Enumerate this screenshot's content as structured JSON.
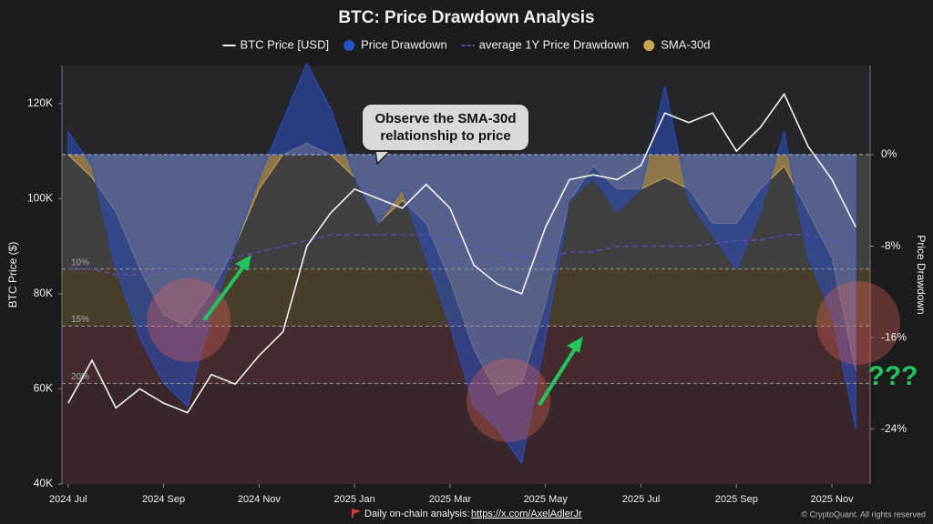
{
  "chart_data": {
    "type": "line",
    "title": "BTC: Price Drawdown Analysis",
    "y_label": "BTC Price ($)",
    "y2_label": "Price Drawdown",
    "x": [
      0,
      0.5,
      1,
      1.5,
      2,
      2.5,
      3,
      3.5,
      4,
      4.5,
      5,
      5.5,
      6,
      6.5,
      7,
      7.5,
      8,
      8.5,
      9,
      9.5,
      10,
      10.5,
      11,
      11.5,
      12,
      12.5,
      13,
      13.5,
      14,
      14.5,
      15,
      15.5,
      16,
      16.5
    ],
    "xlim": [
      -0.13,
      16.8
    ],
    "xticks": [
      {
        "value": 0,
        "label": "2024 Jul"
      },
      {
        "value": 2,
        "label": "2024 Sep"
      },
      {
        "value": 4,
        "label": "2024 Nov"
      },
      {
        "value": 6,
        "label": "2025 Jan"
      },
      {
        "value": 8,
        "label": "2025 Mar"
      },
      {
        "value": 10,
        "label": "2025 May"
      },
      {
        "value": 12,
        "label": "2025 Jul"
      },
      {
        "value": 14,
        "label": "2025 Sep"
      },
      {
        "value": 16,
        "label": "2025 Nov"
      }
    ],
    "ylim": [
      40000,
      128000
    ],
    "yticks": [
      {
        "value": 40000,
        "label": "40K"
      },
      {
        "value": 60000,
        "label": "60K"
      },
      {
        "value": 80000,
        "label": "80K"
      },
      {
        "value": 100000,
        "label": "100K"
      },
      {
        "value": 120000,
        "label": "120K"
      }
    ],
    "y2lim": [
      -28.8,
      7.8
    ],
    "y2ticks": [
      {
        "value": 0,
        "label": "0%"
      },
      {
        "value": -8,
        "label": "-8%"
      },
      {
        "value": -16,
        "label": "-16%"
      },
      {
        "value": -24,
        "label": "-24%"
      }
    ],
    "band_lines": [
      {
        "value": -10,
        "label": "10%"
      },
      {
        "value": -15,
        "label": "15%"
      },
      {
        "value": -20,
        "label": "20%"
      }
    ],
    "band_colors": [
      "#b8b4a8",
      "#8a6a2e",
      "#7a3430",
      "#5a2a2a"
    ],
    "series": [
      {
        "name": "SMA-30d",
        "color": "#c9a652",
        "kind": "area",
        "axis": "y2",
        "values": [
          0,
          -2,
          -5,
          -10,
          -14,
          -15,
          -12,
          -8,
          -3,
          0,
          1,
          0,
          -2,
          -6,
          -4,
          -6,
          -11,
          -17,
          -21,
          -20,
          -13,
          -4,
          -1,
          -3,
          -3,
          -2,
          -3,
          -6,
          -6,
          -3,
          -1,
          -5,
          -9,
          -19
        ]
      },
      {
        "name": "Price Drawdown",
        "color": "#2a4fc4",
        "kind": "area",
        "axis": "y2",
        "values": [
          2,
          -1,
          -10,
          -16,
          -20,
          -22,
          -14,
          -8,
          -2,
          3,
          8,
          4,
          -2,
          -6,
          -3,
          -9,
          -15,
          -22,
          -24,
          -27,
          -16,
          -4,
          -2,
          -5,
          -3,
          6,
          -4,
          -7,
          -10,
          -5,
          2,
          -9,
          -14,
          -24
        ]
      },
      {
        "name": "average 1Y Price Drawdown",
        "color": "#5b4fb0",
        "kind": "dashed",
        "axis": "y2",
        "values": [
          -10,
          -10,
          -10.5,
          -10.5,
          -10,
          -10,
          -9.5,
          -9,
          -8.5,
          -8,
          -7.5,
          -7,
          -7,
          -7,
          -7,
          -7,
          -7.5,
          -8,
          -8.5,
          -9,
          -9,
          -8.5,
          -8.5,
          -8,
          -8,
          -8,
          -8,
          -7.8,
          -7.5,
          -7.5,
          -7,
          -7,
          -7.5,
          -8
        ]
      },
      {
        "name": "BTC Price [USD]",
        "color": "#f2f2f2",
        "kind": "line",
        "axis": "y",
        "values": [
          57000,
          66000,
          56000,
          60000,
          57000,
          55000,
          63000,
          61000,
          67000,
          72000,
          90000,
          97000,
          102000,
          100000,
          98000,
          103000,
          98000,
          86000,
          82000,
          80000,
          94000,
          104000,
          105000,
          104000,
          107000,
          118000,
          116000,
          118000,
          110000,
          115000,
          122000,
          111000,
          104000,
          94000
        ]
      }
    ],
    "legend_order": [
      3,
      1,
      2,
      0
    ],
    "callout": "Observe the SMA-30d relationship to price",
    "question": "???",
    "footer_text": "Daily on-chain analysis:",
    "footer_link": "https://x.com/AxelAdlerJr",
    "copyright": "© CryptoQuant. All rights reserved"
  }
}
